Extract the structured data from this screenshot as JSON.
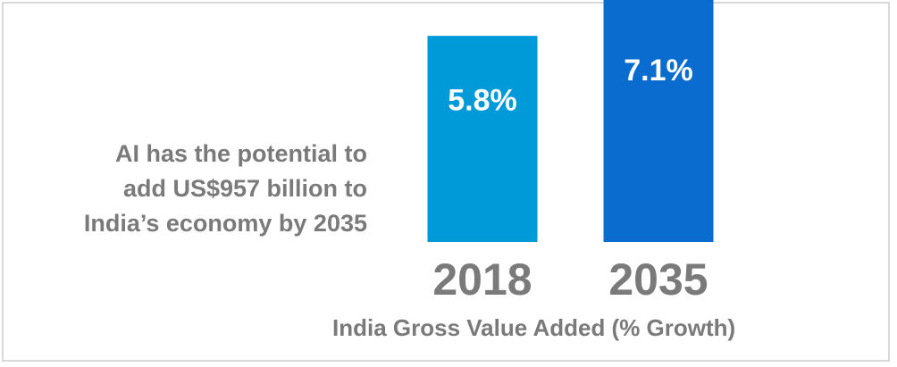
{
  "headline": {
    "lines": [
      "AI has the potential to",
      "add US$957 billion to",
      "India’s economy by 2035"
    ]
  },
  "chart_data": {
    "type": "bar",
    "categories": [
      "2018",
      "2035"
    ],
    "values": [
      5.8,
      7.1
    ],
    "value_labels": [
      "5.8%",
      "7.1%"
    ],
    "xlabel": "India Gross Value Added (% Growth)",
    "ylabel": "",
    "grid": false,
    "colors": [
      "#009ad9",
      "#0a6ccf"
    ]
  }
}
